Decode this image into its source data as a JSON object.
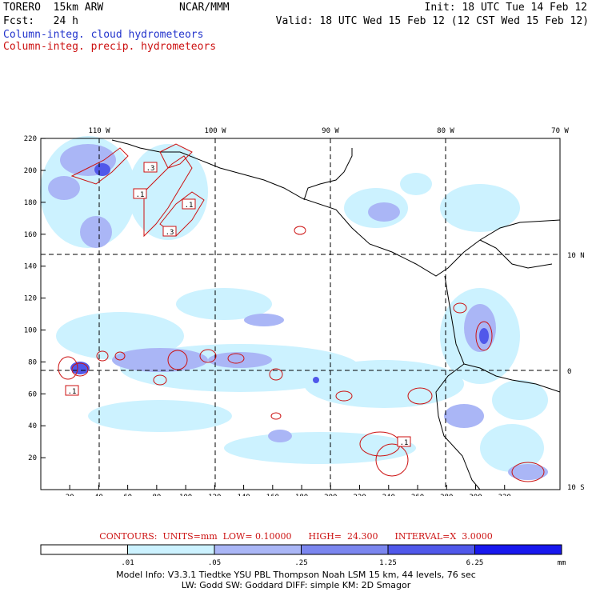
{
  "header": {
    "model": "TORERO  15km ARW",
    "org": "NCAR/MMM",
    "init": "Init: 18 UTC Tue 14 Feb 12",
    "fcst": "Fcst:   24 h",
    "valid": "Valid: 18 UTC Wed 15 Feb 12 (12 CST Wed 15 Feb 12)",
    "field1": "Column-integ. cloud hydrometeors",
    "field2": "Column-integ. precip. hydrometeors"
  },
  "map": {
    "lon_labels": [
      "110 W",
      "100 W",
      "90 W",
      "80 W",
      "70 W"
    ],
    "lat_labels": [
      "10 N",
      "0",
      "10 S"
    ],
    "x_ticks": [
      "20",
      "40",
      "60",
      "80",
      "100",
      "120",
      "140",
      "160",
      "180",
      "200",
      "220",
      "240",
      "260",
      "280",
      "300",
      "320"
    ],
    "y_ticks": [
      "20",
      "40",
      "60",
      "80",
      "100",
      "120",
      "140",
      "160",
      "180",
      "200",
      "220"
    ],
    "contour_labels": [
      ".3",
      ".1",
      ".1",
      ".3",
      ".1",
      ".1"
    ]
  },
  "contours_info": "CONTOURS:  UNITS=mm  LOW= 0.10000      HIGH=  24.300      INTERVAL=X  3.0000",
  "colorbar": {
    "labels": [
      ".01",
      ".05",
      ".25",
      "1.25",
      "6.25"
    ],
    "unit": "mm",
    "colors": [
      "#ffffff",
      "#ccf2ff",
      "#aab6f6",
      "#7b86ef",
      "#5058ea",
      "#1818ee"
    ]
  },
  "footer": {
    "line1": "Model Info: V3.3.1   Tiedtke YSU PBL  Thompson     Noah LSM  15 km,   44 levels,   76 sec",
    "line2": "LW: Godd SW: Goddard DIFF: simple KM: 2D Smagor"
  }
}
